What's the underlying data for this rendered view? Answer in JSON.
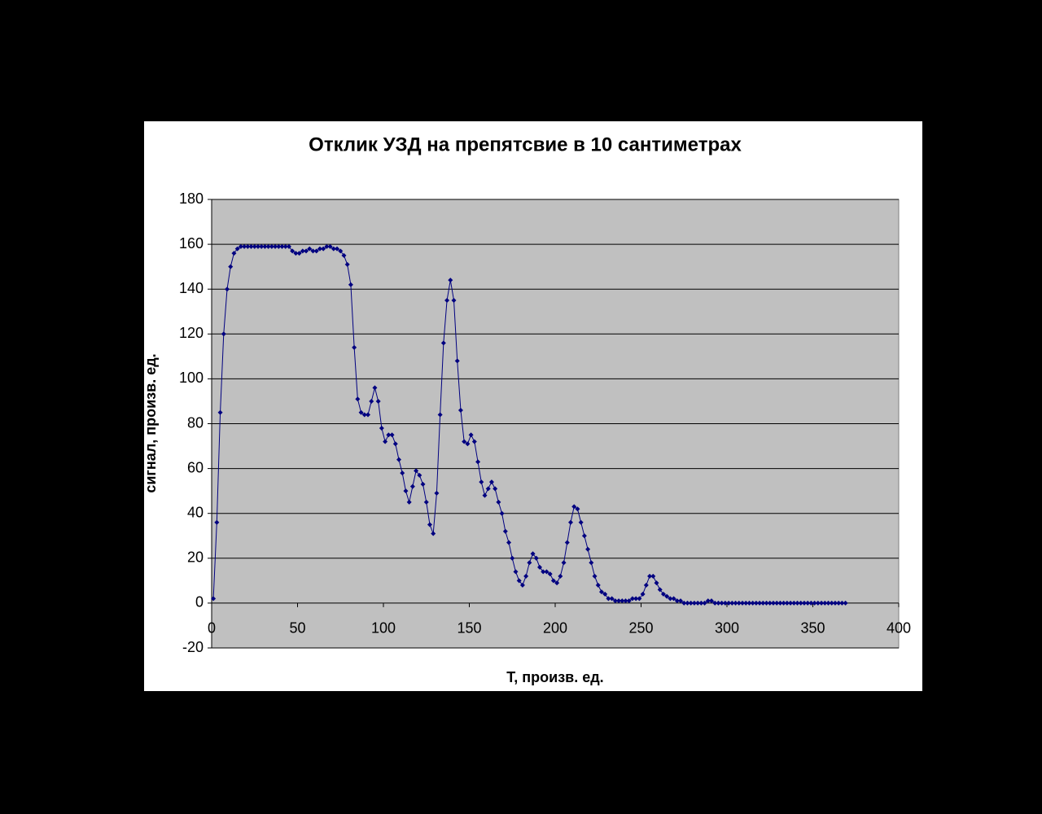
{
  "chart_data": {
    "type": "line",
    "title": "Отклик УЗД на препятсвие в 10 сантиметрах",
    "xlabel": "T, произв. ед.",
    "ylabel": "сигнал, произв. ед.",
    "color": "#000080",
    "marker": "diamond",
    "grid": true,
    "xlim": [
      0,
      400
    ],
    "xticks": [
      0,
      50,
      100,
      150,
      200,
      250,
      300,
      350,
      400
    ],
    "ylim": [
      -20,
      180
    ],
    "yticks": [
      -20,
      0,
      20,
      40,
      60,
      80,
      100,
      120,
      140,
      160,
      180
    ],
    "x": [
      1,
      3,
      5,
      7,
      9,
      11,
      13,
      15,
      17,
      19,
      21,
      23,
      25,
      27,
      29,
      31,
      33,
      35,
      37,
      39,
      41,
      43,
      45,
      47,
      49,
      51,
      53,
      55,
      57,
      59,
      61,
      63,
      65,
      67,
      69,
      71,
      73,
      75,
      77,
      79,
      81,
      83,
      85,
      87,
      89,
      91,
      93,
      95,
      97,
      99,
      101,
      103,
      105,
      107,
      109,
      111,
      113,
      115,
      117,
      119,
      121,
      123,
      125,
      127,
      129,
      131,
      133,
      135,
      137,
      139,
      141,
      143,
      145,
      147,
      149,
      151,
      153,
      155,
      157,
      159,
      161,
      163,
      165,
      167,
      169,
      171,
      173,
      175,
      177,
      179,
      181,
      183,
      185,
      187,
      189,
      191,
      193,
      195,
      197,
      199,
      201,
      203,
      205,
      207,
      209,
      211,
      213,
      215,
      217,
      219,
      221,
      223,
      225,
      227,
      229,
      231,
      233,
      235,
      237,
      239,
      241,
      243,
      245,
      247,
      249,
      251,
      253,
      255,
      257,
      259,
      261,
      263,
      265,
      267,
      269,
      271,
      273,
      275,
      277,
      279,
      281,
      283,
      285,
      287,
      289,
      291,
      293,
      295,
      297,
      299,
      301,
      303,
      305,
      307,
      309,
      311,
      313,
      315,
      317,
      319,
      321,
      323,
      325,
      327,
      329,
      331,
      333,
      335,
      337,
      339,
      341,
      343,
      345,
      347,
      349,
      351,
      353,
      355,
      357,
      359,
      361,
      363,
      365,
      367,
      369
    ],
    "values": [
      2,
      36,
      85,
      120,
      140,
      150,
      156,
      158,
      159,
      159,
      159,
      159,
      159,
      159,
      159,
      159,
      159,
      159,
      159,
      159,
      159,
      159,
      159,
      157,
      156,
      156,
      157,
      157,
      158,
      157,
      157,
      158,
      158,
      159,
      159,
      158,
      158,
      157,
      155,
      151,
      142,
      114,
      91,
      85,
      84,
      84,
      90,
      96,
      90,
      78,
      72,
      75,
      75,
      71,
      64,
      58,
      50,
      45,
      52,
      59,
      57,
      53,
      45,
      35,
      31,
      49,
      84,
      116,
      135,
      144,
      135,
      108,
      86,
      72,
      71,
      75,
      72,
      63,
      54,
      48,
      51,
      54,
      51,
      45,
      40,
      32,
      27,
      20,
      14,
      10,
      8,
      12,
      18,
      22,
      20,
      16,
      14,
      14,
      13,
      10,
      9,
      12,
      18,
      27,
      36,
      43,
      42,
      36,
      30,
      24,
      18,
      12,
      8,
      5,
      4,
      2,
      2,
      1,
      1,
      1,
      1,
      1,
      2,
      2,
      2,
      4,
      8,
      12,
      12,
      9,
      6,
      4,
      3,
      2,
      2,
      1,
      1,
      0,
      0,
      0,
      0,
      0,
      0,
      0,
      1,
      1,
      0,
      0,
      0,
      0,
      0,
      0,
      0,
      0,
      0,
      0,
      0,
      0,
      0,
      0,
      0,
      0,
      0,
      0,
      0,
      0,
      0,
      0,
      0,
      0,
      0,
      0,
      0,
      0,
      0,
      0,
      0,
      0,
      0,
      0,
      0,
      0,
      0,
      0,
      0
    ]
  }
}
